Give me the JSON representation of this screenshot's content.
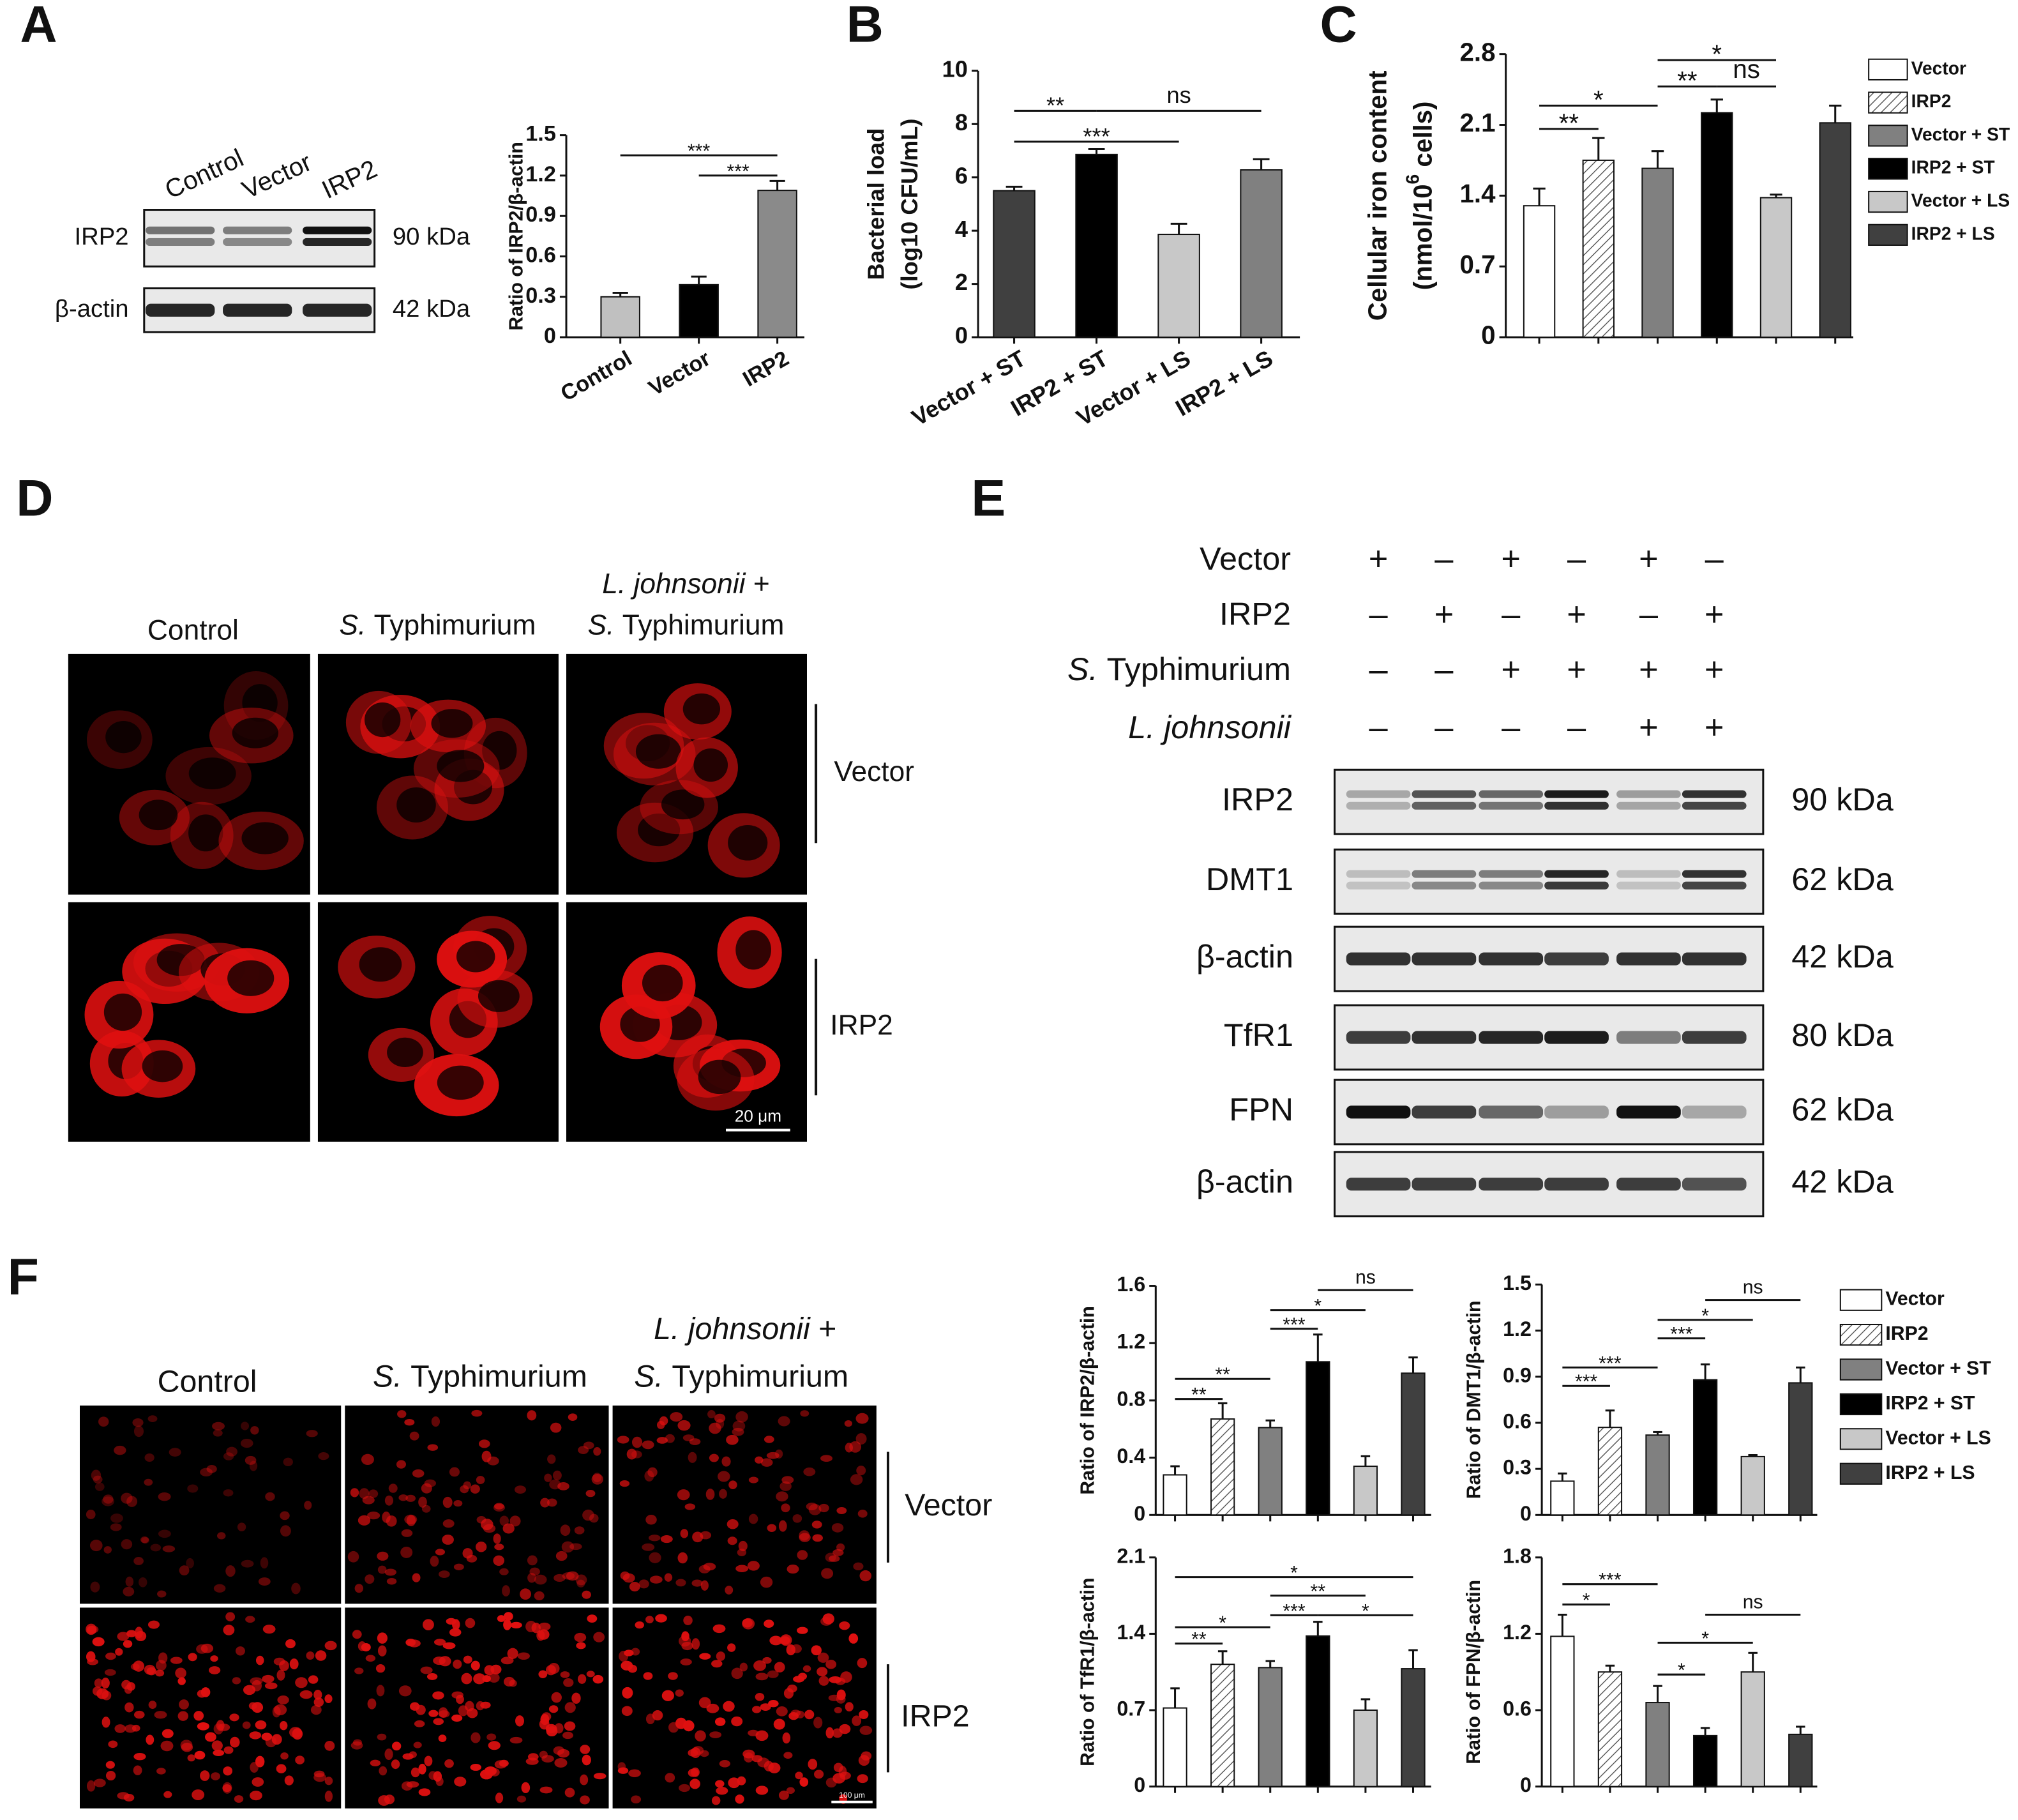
{
  "panel_labels": [
    "A",
    "B",
    "C",
    "D",
    "E",
    "F"
  ],
  "blot_A": {
    "lanes": [
      "Control",
      "Vector",
      "IRP2"
    ],
    "rows": [
      {
        "protein": "IRP2",
        "size": "90 kDa"
      },
      {
        "protein": "β-actin",
        "size": "42 kDa"
      }
    ]
  },
  "micro_D": {
    "columns": [
      [
        {
          "text": "Control"
        }
      ],
      [
        {
          "italic": "S.",
          "text": "Typhimurium"
        }
      ],
      [
        {
          "italic": "L. johnsonii",
          "text": "+"
        },
        {
          "italic": "S.",
          "text": "Typhimurium"
        }
      ]
    ],
    "rows": [
      "Vector",
      "IRP2"
    ],
    "scale_bar": "20 μm"
  },
  "blot_E": {
    "conditions": [
      {
        "text": "Vector",
        "signs": [
          "+",
          "–",
          "+",
          "–",
          "+",
          "–"
        ]
      },
      {
        "text": "IRP2",
        "signs": [
          "–",
          "+",
          "–",
          "+",
          "–",
          "+"
        ]
      },
      {
        "italic": "S.",
        "text": "Typhimurium",
        "signs": [
          "–",
          "–",
          "+",
          "+",
          "+",
          "+"
        ]
      },
      {
        "italic": "L. johnsonii",
        "signs": [
          "–",
          "–",
          "–",
          "–",
          "+",
          "+"
        ]
      }
    ],
    "blots": [
      {
        "protein": "IRP2",
        "size": "90 kDa"
      },
      {
        "protein": "DMT1",
        "size": "62 kDa"
      },
      {
        "protein": "β-actin",
        "size": "42 kDa"
      },
      {
        "protein": "TfR1",
        "size": "80 kDa"
      },
      {
        "protein": "FPN",
        "size": "62 kDa"
      },
      {
        "protein": "β-actin",
        "size": "42 kDa"
      }
    ]
  },
  "micro_F": {
    "columns": [
      [
        {
          "text": "Control"
        }
      ],
      [
        {
          "italic": "S.",
          "text": "Typhimurium"
        }
      ],
      [
        {
          "italic": "L. johnsonii",
          "text": "+"
        },
        {
          "italic": "S.",
          "text": "Typhimurium"
        }
      ]
    ],
    "rows": [
      "Vector",
      "IRP2"
    ],
    "scale_bar": "100 μm"
  },
  "chart_data": [
    {
      "type": "bar",
      "y_label": [
        "Ratio of IRP2/β-actin"
      ],
      "categories": [
        "Control",
        "Vector",
        "IRP2"
      ],
      "values": [
        0.3,
        0.39,
        1.09
      ],
      "errors": [
        0.03,
        0.06,
        0.07
      ],
      "colors": [
        "#c0c0c0",
        "#000000",
        "#8a8a8a"
      ],
      "ylim": [
        0,
        1.5
      ],
      "yticks": [
        0,
        0.3,
        0.6,
        0.9,
        1.2,
        1.5
      ],
      "annotations": [
        {
          "text": "***",
          "from": 0,
          "to": 2,
          "y": 1.35
        },
        {
          "text": "***",
          "from": 1,
          "to": 2,
          "y": 1.2
        }
      ]
    },
    {
      "type": "bar",
      "y_label": [
        "Bacterial load",
        "(log10 CFU/mL)"
      ],
      "categories": [
        "Vector + ST",
        "IRP2 + ST",
        "Vector + LS",
        "IRP2 + LS"
      ],
      "values": [
        5.5,
        6.86,
        3.86,
        6.28
      ],
      "errors": [
        0.15,
        0.2,
        0.4,
        0.4
      ],
      "colors": [
        "#404040",
        "#000000",
        "#c8c8c8",
        "#808080"
      ],
      "ylim": [
        0,
        10
      ],
      "yticks": [
        0,
        2,
        4,
        6,
        8,
        10
      ],
      "annotations": [
        {
          "text": "**",
          "from": 0,
          "to": 1,
          "y": 8.5
        },
        {
          "text": "ns",
          "from": 1,
          "to": 3,
          "y": 8.5
        },
        {
          "text": "***",
          "from": 0,
          "to": 2,
          "y": 7.34
        }
      ]
    },
    {
      "type": "bar",
      "y_label": [
        "Cellular iron content",
        [
          "(nmol/10",
          "6",
          " cells)"
        ]
      ],
      "categories": [
        null,
        null,
        null,
        null,
        null,
        null
      ],
      "values": [
        1.3,
        1.75,
        1.67,
        2.22,
        1.38,
        2.12
      ],
      "errors": [
        0.17,
        0.22,
        0.17,
        0.13,
        0.03,
        0.17
      ],
      "colors": [
        "#ffffff",
        "#ffffff",
        "#808080",
        "#000000",
        "#c8c8c8",
        "#404040"
      ],
      "hatched": [
        false,
        true,
        false,
        false,
        false,
        false
      ],
      "legend_labels": [
        "Vector",
        "IRP2",
        "Vector + ST",
        "IRP2 + ST",
        "Vector + LS",
        "IRP2 + LS"
      ],
      "ylim": [
        0,
        2.8
      ],
      "yticks": [
        0,
        0.7,
        1.4,
        2.1,
        2.8
      ],
      "annotations": [
        {
          "text": "**",
          "from": 0,
          "to": 1,
          "y": 2.06
        },
        {
          "text": "*",
          "from": 0,
          "to": 2,
          "y": 2.29
        },
        {
          "text": "**",
          "from": 2,
          "to": 3,
          "y": 2.48
        },
        {
          "text": "ns",
          "from": 3,
          "to": 4,
          "y": 2.48
        },
        {
          "text": "*",
          "from": 2,
          "to": 4,
          "y": 2.74
        }
      ]
    },
    {
      "type": "bar",
      "y_label": [
        "Ratio of IRP2/β-actin"
      ],
      "categories": [
        null,
        null,
        null,
        null,
        null,
        null
      ],
      "values": [
        0.28,
        0.67,
        0.61,
        1.07,
        0.34,
        0.99
      ],
      "errors": [
        0.06,
        0.11,
        0.05,
        0.19,
        0.07,
        0.11
      ],
      "colors": [
        "#ffffff",
        "#ffffff",
        "#808080",
        "#000000",
        "#c8c8c8",
        "#404040"
      ],
      "hatched": [
        false,
        true,
        false,
        false,
        false,
        false
      ],
      "ylim": [
        0,
        1.6
      ],
      "yticks": [
        0,
        0.4,
        0.8,
        1.2,
        1.6
      ],
      "annotations": [
        {
          "text": "**",
          "from": 0,
          "to": 1,
          "y": 0.81
        },
        {
          "text": "**",
          "from": 0,
          "to": 2,
          "y": 0.95
        },
        {
          "text": "***",
          "from": 2,
          "to": 3,
          "y": 1.3
        },
        {
          "text": "*",
          "from": 2,
          "to": 4,
          "y": 1.43
        },
        {
          "text": "ns",
          "from": 3,
          "to": 5,
          "y": 1.57
        }
      ]
    },
    {
      "type": "bar",
      "y_label": [
        "Ratio of DMT1/β-actin"
      ],
      "categories": [
        null,
        null,
        null,
        null,
        null,
        null
      ],
      "values": [
        0.22,
        0.57,
        0.52,
        0.88,
        0.38,
        0.86
      ],
      "errors": [
        0.05,
        0.11,
        0.02,
        0.1,
        0.01,
        0.1
      ],
      "colors": [
        "#ffffff",
        "#ffffff",
        "#808080",
        "#000000",
        "#c8c8c8",
        "#404040"
      ],
      "hatched": [
        false,
        true,
        false,
        false,
        false,
        false
      ],
      "legend_labels": [
        "Vector",
        "IRP2",
        "Vector + ST",
        "IRP2 + ST",
        "Vector + LS",
        "IRP2 + LS"
      ],
      "ylim": [
        0,
        1.5
      ],
      "yticks": [
        0,
        0.3,
        0.6,
        0.9,
        1.2,
        1.5
      ],
      "annotations": [
        {
          "text": "***",
          "from": 0,
          "to": 1,
          "y": 0.84
        },
        {
          "text": "***",
          "from": 0,
          "to": 2,
          "y": 0.96
        },
        {
          "text": "***",
          "from": 2,
          "to": 3,
          "y": 1.15
        },
        {
          "text": "*",
          "from": 2,
          "to": 4,
          "y": 1.27
        },
        {
          "text": "ns",
          "from": 3,
          "to": 5,
          "y": 1.4
        }
      ]
    },
    {
      "type": "bar",
      "y_label": [
        "Ratio of TfR1/β-actin"
      ],
      "categories": [
        null,
        null,
        null,
        null,
        null,
        null
      ],
      "values": [
        0.72,
        1.12,
        1.09,
        1.38,
        0.7,
        1.08
      ],
      "errors": [
        0.18,
        0.12,
        0.06,
        0.13,
        0.1,
        0.17
      ],
      "colors": [
        "#ffffff",
        "#ffffff",
        "#808080",
        "#000000",
        "#c8c8c8",
        "#404040"
      ],
      "hatched": [
        false,
        true,
        false,
        false,
        false,
        false
      ],
      "ylim": [
        0,
        2.1
      ],
      "yticks": [
        0,
        0.7,
        1.4,
        2.1
      ],
      "annotations": [
        {
          "text": "**",
          "from": 0,
          "to": 1,
          "y": 1.31
        },
        {
          "text": "*",
          "from": 0,
          "to": 2,
          "y": 1.46
        },
        {
          "text": "***",
          "from": 2,
          "to": 3,
          "y": 1.57
        },
        {
          "text": "*",
          "from": 3,
          "to": 5,
          "y": 1.57
        },
        {
          "text": "**",
          "from": 2,
          "to": 4,
          "y": 1.75
        },
        {
          "text": "*",
          "from": 0,
          "to": 5,
          "y": 1.92
        }
      ]
    },
    {
      "type": "bar",
      "y_label": [
        "Ratio of FPN/β-actin"
      ],
      "categories": [
        null,
        null,
        null,
        null,
        null,
        null
      ],
      "values": [
        1.18,
        0.9,
        0.66,
        0.4,
        0.9,
        0.41
      ],
      "errors": [
        0.17,
        0.05,
        0.13,
        0.06,
        0.15,
        0.06
      ],
      "colors": [
        "#ffffff",
        "#ffffff",
        "#808080",
        "#000000",
        "#c8c8c8",
        "#404040"
      ],
      "hatched": [
        false,
        true,
        false,
        false,
        false,
        false
      ],
      "ylim": [
        0,
        1.8
      ],
      "yticks": [
        0,
        0.6,
        1.2,
        1.8
      ],
      "annotations": [
        {
          "text": "*",
          "from": 0,
          "to": 1,
          "y": 1.43
        },
        {
          "text": "***",
          "from": 0,
          "to": 2,
          "y": 1.59
        },
        {
          "text": "*",
          "from": 2,
          "to": 3,
          "y": 0.88
        },
        {
          "text": "*",
          "from": 2,
          "to": 4,
          "y": 1.13
        },
        {
          "text": "ns",
          "from": 3,
          "to": 5,
          "y": 1.35
        }
      ]
    }
  ]
}
